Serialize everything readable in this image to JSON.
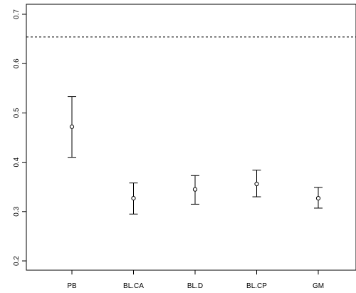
{
  "chart_data": {
    "type": "scatter",
    "subtype": "error-bar",
    "title": "",
    "xlabel": "",
    "ylabel": "",
    "categories": [
      "PB",
      "BL.CA",
      "BL.D",
      "BL.CP",
      "GM"
    ],
    "points": [
      {
        "category": "PB",
        "value": 0.472,
        "lower": 0.41,
        "upper": 0.533
      },
      {
        "category": "BL.CA",
        "value": 0.327,
        "lower": 0.295,
        "upper": 0.358
      },
      {
        "category": "BL.D",
        "value": 0.345,
        "lower": 0.315,
        "upper": 0.373
      },
      {
        "category": "BL.CP",
        "value": 0.356,
        "lower": 0.33,
        "upper": 0.384
      },
      {
        "category": "GM",
        "value": 0.327,
        "lower": 0.307,
        "upper": 0.349
      }
    ],
    "reference_line": {
      "value": 0.654,
      "style": "dotted"
    },
    "ylim": [
      0.2,
      0.7
    ],
    "yticks": [
      "0.2",
      "0.3",
      "0.4",
      "0.5",
      "0.6",
      "0.7"
    ],
    "grid": false,
    "legend": "none",
    "colors": {
      "marks": "#000000",
      "background": "#ffffff"
    }
  }
}
